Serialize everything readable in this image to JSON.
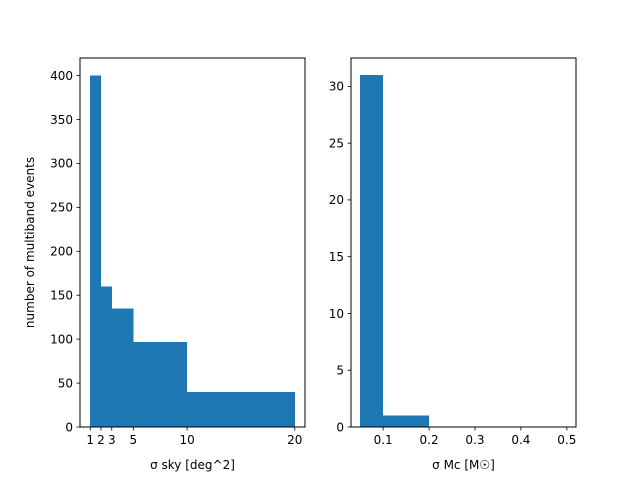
{
  "chart_data": [
    {
      "type": "bar",
      "subtype": "histogram",
      "xlabel": "σ sky [deg^2]",
      "ylabel": "number of multiband events",
      "xlim": [
        0.05,
        20.95
      ],
      "ylim": [
        0,
        420
      ],
      "xticks": [
        1,
        2,
        3,
        5,
        10,
        20
      ],
      "yticks": [
        0,
        50,
        100,
        150,
        200,
        250,
        300,
        350,
        400
      ],
      "bins": [
        {
          "x0": 1,
          "x1": 2,
          "value": 400
        },
        {
          "x0": 2,
          "x1": 3,
          "value": 160
        },
        {
          "x0": 3,
          "x1": 5,
          "value": 135
        },
        {
          "x0": 5,
          "x1": 10,
          "value": 97
        },
        {
          "x0": 10,
          "x1": 20,
          "value": 40
        }
      ],
      "color": "#1f77b4",
      "grid": false
    },
    {
      "type": "bar",
      "subtype": "histogram",
      "xlabel": "σ Mc [M☉]",
      "ylabel": "",
      "xlim": [
        0.03,
        0.52
      ],
      "ylim": [
        0,
        32.5
      ],
      "xticks": [
        "0.1",
        "0.2",
        "0.3",
        "0.4",
        "0.5"
      ],
      "yticks": [
        0,
        5,
        10,
        15,
        20,
        25,
        30
      ],
      "bins": [
        {
          "x0": 0.05,
          "x1": 0.1,
          "value": 31
        },
        {
          "x0": 0.1,
          "x1": 0.2,
          "value": 1
        },
        {
          "x0": 0.2,
          "x1": 0.3,
          "value": 0
        },
        {
          "x0": 0.3,
          "x1": 0.4,
          "value": 0
        },
        {
          "x0": 0.4,
          "x1": 0.5,
          "value": 0
        }
      ],
      "color": "#1f77b4",
      "grid": false
    }
  ]
}
